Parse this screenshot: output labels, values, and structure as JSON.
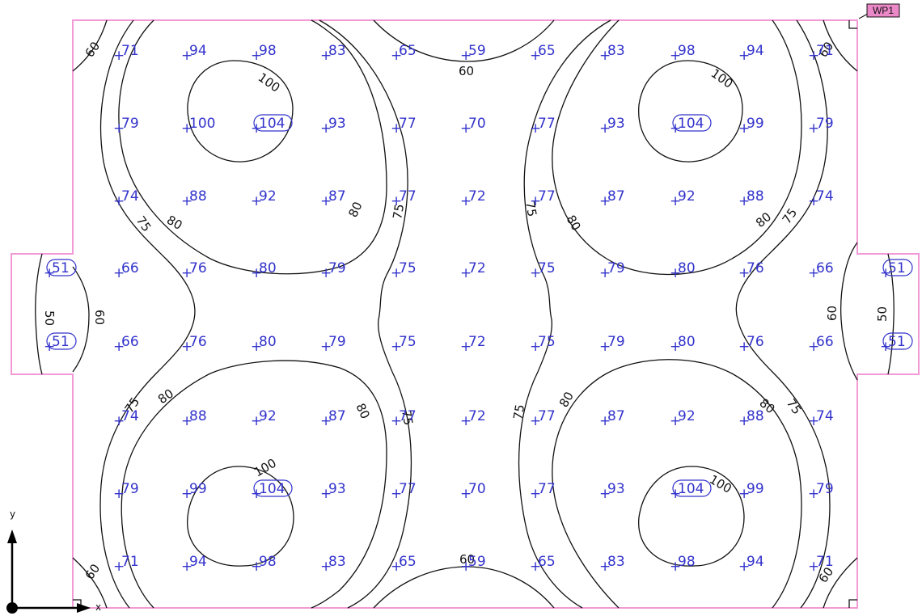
{
  "workplane_label": "WP1",
  "axes": {
    "x": "x",
    "y": "y"
  },
  "colors": {
    "outline": "#f29ad6",
    "values": "#3333cc",
    "contours": "#111111",
    "tag_fill": "#ea88c8"
  },
  "values": {
    "r1": [
      "71",
      "94",
      "98",
      "83",
      "65",
      "59",
      "65",
      "83",
      "98",
      "94",
      "71"
    ],
    "r2": [
      "79",
      "100",
      "104",
      "93",
      "77",
      "70",
      "77",
      "93",
      "104",
      "99",
      "79"
    ],
    "r3": [
      "74",
      "88",
      "92",
      "87",
      "77",
      "72",
      "77",
      "87",
      "92",
      "88",
      "74"
    ],
    "r4": [
      "51",
      "66",
      "76",
      "80",
      "79",
      "75",
      "72",
      "75",
      "79",
      "80",
      "76",
      "66",
      "51"
    ],
    "r5": [
      "51",
      "66",
      "76",
      "80",
      "79",
      "75",
      "72",
      "75",
      "79",
      "80",
      "76",
      "66",
      "51"
    ],
    "r6": [
      "74",
      "88",
      "92",
      "87",
      "77",
      "72",
      "77",
      "87",
      "92",
      "88",
      "74"
    ],
    "r7": [
      "79",
      "99",
      "104",
      "93",
      "77",
      "70",
      "77",
      "93",
      "104",
      "99",
      "79"
    ],
    "r8": [
      "71",
      "94",
      "98",
      "83",
      "65",
      "59",
      "65",
      "83",
      "98",
      "94",
      "71"
    ]
  },
  "contour_labels": {
    "l100": "100",
    "l80": "80",
    "l75": "75",
    "l60": "60",
    "l50": "50"
  }
}
